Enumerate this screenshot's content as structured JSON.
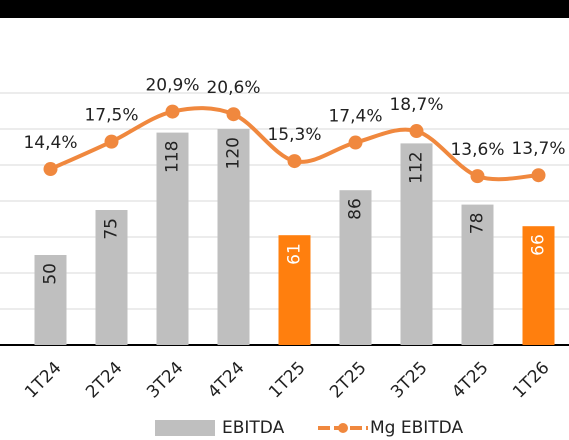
{
  "chart_data": {
    "type": "bar_line",
    "categories": [
      "1T24",
      "2T24",
      "3T24",
      "4T24",
      "1T25",
      "2T25",
      "3T25",
      "4T25",
      "1T26"
    ],
    "series": [
      {
        "name": "EBITDA",
        "type": "bar",
        "color": "#bfbfbf",
        "colors": [
          "#bfbfbf",
          "#bfbfbf",
          "#bfbfbf",
          "#bfbfbf",
          "#ff7f0e",
          "#bfbfbf",
          "#bfbfbf",
          "#bfbfbf",
          "#ff7f0e"
        ],
        "values": [
          50,
          75,
          118,
          120,
          61,
          86,
          112,
          78,
          66
        ]
      },
      {
        "name": "Mg EBITDA",
        "type": "line",
        "axis": "y2",
        "color": "#f0883e",
        "values": [
          14.4,
          17.5,
          20.9,
          20.6,
          15.3,
          17.4,
          18.7,
          13.6,
          13.7
        ],
        "value_labels": [
          "14,4%",
          "17,5%",
          "20,9%",
          "20,6%",
          "15,3%",
          "17,4%",
          "18,7%",
          "13,6%",
          "13,7%"
        ]
      }
    ],
    "ylim": [
      0,
      140
    ],
    "yticks": [
      0,
      20,
      40,
      60,
      80,
      100,
      120,
      140
    ],
    "y2lim": [
      -5.5,
      23
    ],
    "grid": true,
    "legend": "bottom"
  }
}
